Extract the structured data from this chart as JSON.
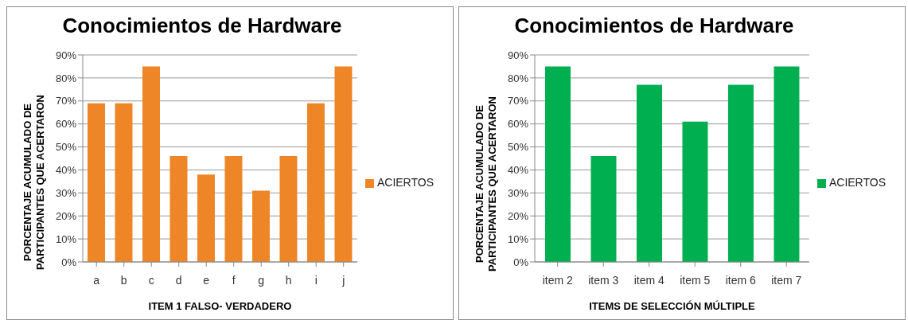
{
  "chart_data": [
    {
      "type": "bar",
      "title": "Conocimientos de Hardware",
      "xlabel": "ITEM 1 FALSO- VERDADERO",
      "ylabel": "PORCENTAJE ACUMULADO DE PARTICIPANTES QUE ACERTARON",
      "categories": [
        "a",
        "b",
        "c",
        "d",
        "e",
        "f",
        "g",
        "h",
        "i",
        "j"
      ],
      "series": [
        {
          "name": "ACIERTOS",
          "color": "#ee8627",
          "values": [
            69,
            69,
            85,
            46,
            38,
            46,
            31,
            46,
            69,
            85
          ]
        }
      ],
      "ylim": [
        0,
        90
      ],
      "yticks": [
        {
          "value": 0,
          "label": "0%"
        },
        {
          "value": 10,
          "label": "10%"
        },
        {
          "value": 20,
          "label": "20%"
        },
        {
          "value": 30,
          "label": "30%"
        },
        {
          "value": 40,
          "label": "40%"
        },
        {
          "value": 50,
          "label": "50%"
        },
        {
          "value": 60,
          "label": "60%"
        },
        {
          "value": 70,
          "label": "70%"
        },
        {
          "value": 80,
          "label": "80%"
        },
        {
          "value": 90,
          "label": "90%"
        }
      ],
      "grid": "y",
      "legend": "right"
    },
    {
      "type": "bar",
      "title": "Conocimientos de Hardware",
      "xlabel": "ITEMS DE SELECCIÓN MÚLTIPLE",
      "ylabel": "PORCENTAJE ACUMULADO DE PARTICIPANTES QUE ACERTARON",
      "categories": [
        "item 2",
        "item 3",
        "item 4",
        "item 5",
        "item 6",
        "item 7"
      ],
      "series": [
        {
          "name": "ACIERTOS",
          "color": "#00b050",
          "values": [
            85,
            46,
            77,
            61,
            77,
            85
          ]
        }
      ],
      "ylim": [
        0,
        90
      ],
      "yticks": [
        {
          "value": 0,
          "label": "0%"
        },
        {
          "value": 10,
          "label": "10%"
        },
        {
          "value": 20,
          "label": "20%"
        },
        {
          "value": 30,
          "label": "30%"
        },
        {
          "value": 40,
          "label": "40%"
        },
        {
          "value": 50,
          "label": "50%"
        },
        {
          "value": 60,
          "label": "60%"
        },
        {
          "value": 70,
          "label": "70%"
        },
        {
          "value": 80,
          "label": "80%"
        },
        {
          "value": 90,
          "label": "90%"
        }
      ],
      "grid": "y",
      "legend": "right"
    }
  ]
}
